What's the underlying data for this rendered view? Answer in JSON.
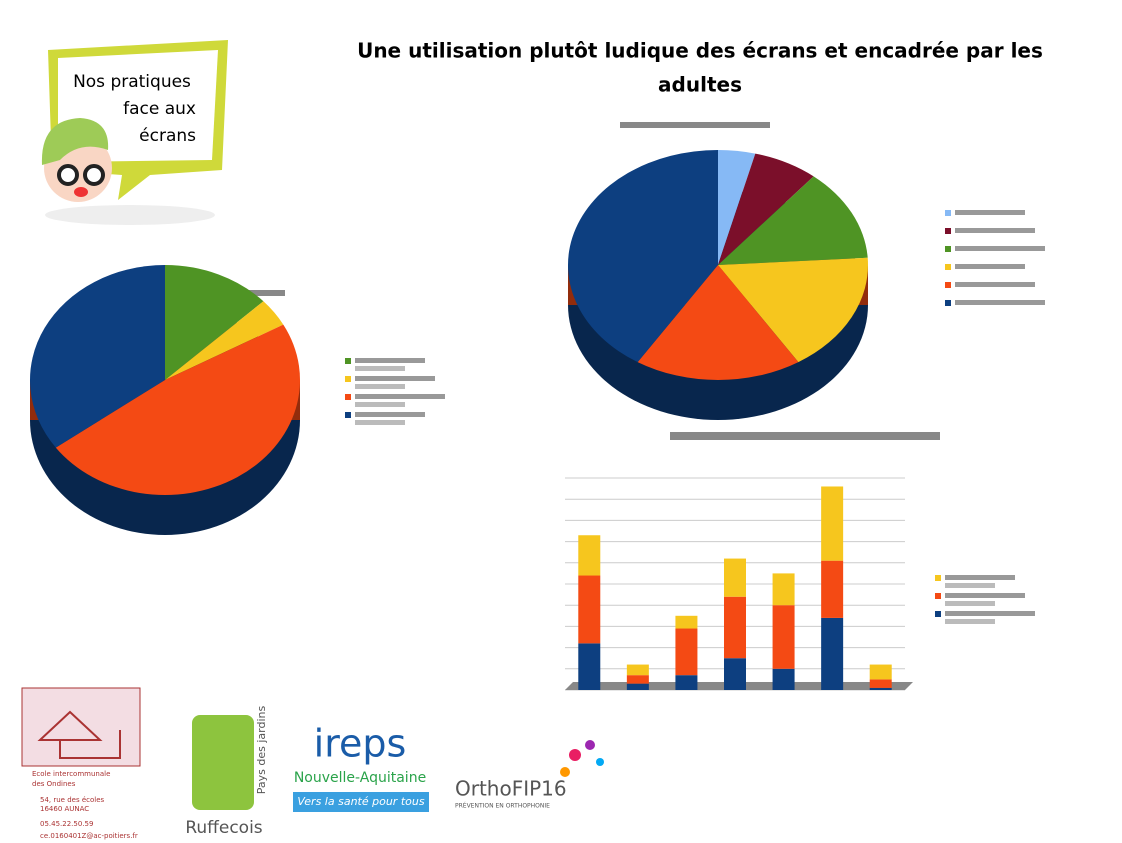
{
  "poster": {
    "title": [
      "Une utilisation plutôt ludique des écrans et encadrée par les",
      "adultes"
    ],
    "bubble": [
      "Nos pratiques",
      "face aux",
      "écrans"
    ]
  },
  "logos": {
    "school": [
      "Ecole intercommunale",
      "des Ondines"
    ],
    "address": [
      "54, rue des écoles",
      "16460 AUNAC"
    ],
    "phone": "05.45.22.50.59",
    "email": "ce.0160401Z@ac-poitiers.fr",
    "ruffecois": "Ruffecois",
    "pays": "Pays des jardins",
    "ireps": "ireps",
    "region": "Nouvelle-Aquitaine",
    "slogan": "Vers la santé pour tous",
    "ortho": "OrthoFIP16",
    "ortho_sub": "PRÉVENTION EN ORTHOPHONIE"
  },
  "chart_data": [
    {
      "type": "pie",
      "values": [
        4,
        7,
        13,
        17,
        18,
        41
      ],
      "colors": [
        "#86b9f5",
        "#7b0f2a",
        "#4f9424",
        "#f6c61e",
        "#f44a14",
        "#0d3f80"
      ]
    },
    {
      "type": "pie",
      "values": [
        13,
        4,
        48,
        35
      ],
      "colors": [
        "#4f9424",
        "#f6c61e",
        "#f44a14",
        "#0d3f80"
      ]
    },
    {
      "type": "bar",
      "stacked": true,
      "categories": [
        null,
        null,
        null,
        null,
        null,
        null,
        null
      ],
      "ylim": [
        0,
        10
      ],
      "grid": true,
      "series": [
        {
          "color": "#0d3f80",
          "values": [
            2.2,
            0.3,
            0.7,
            1.5,
            1.0,
            3.4,
            0.1
          ]
        },
        {
          "color": "#f44a14",
          "values": [
            3.2,
            0.4,
            2.2,
            2.9,
            3.0,
            2.7,
            0.4
          ]
        },
        {
          "color": "#f6c61e",
          "values": [
            1.9,
            0.5,
            0.6,
            1.8,
            1.5,
            3.5,
            0.7
          ]
        }
      ]
    }
  ]
}
